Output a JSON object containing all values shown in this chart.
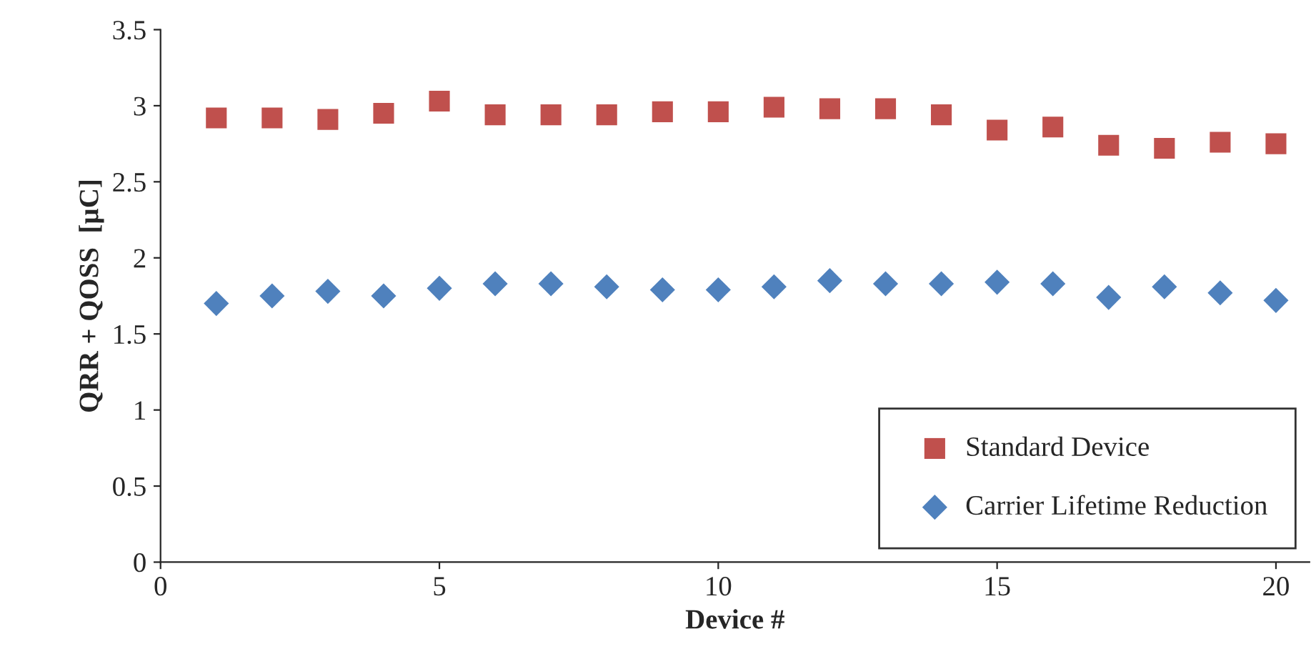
{
  "chart_data": {
    "type": "scatter",
    "xlabel": "Device #",
    "ylabel": "QRR + QOSS  [µC]",
    "x": [
      1,
      2,
      3,
      4,
      5,
      6,
      7,
      8,
      9,
      10,
      11,
      12,
      13,
      14,
      15,
      16,
      17,
      18,
      19,
      20
    ],
    "series": [
      {
        "name": "Standard Device",
        "color": "#c0504d",
        "marker": "square",
        "values": [
          2.92,
          2.92,
          2.91,
          2.95,
          3.03,
          2.94,
          2.94,
          2.94,
          2.96,
          2.96,
          2.99,
          2.98,
          2.98,
          2.94,
          2.84,
          2.86,
          2.74,
          2.72,
          2.76,
          2.75
        ]
      },
      {
        "name": "Carrier Lifetime Reduction",
        "color": "#4f81bd",
        "marker": "diamond",
        "values": [
          1.7,
          1.75,
          1.78,
          1.75,
          1.8,
          1.83,
          1.83,
          1.81,
          1.79,
          1.79,
          1.81,
          1.85,
          1.83,
          1.83,
          1.84,
          1.83,
          1.74,
          1.81,
          1.77,
          1.72
        ]
      }
    ],
    "xlim": [
      0,
      20.6
    ],
    "xticks": [
      0,
      5,
      10,
      15,
      20
    ],
    "ylim": [
      0,
      3.5
    ],
    "yticks": [
      0,
      0.5,
      1,
      1.5,
      2,
      2.5,
      3,
      3.5
    ],
    "grid": false,
    "legend": "bottom right"
  }
}
